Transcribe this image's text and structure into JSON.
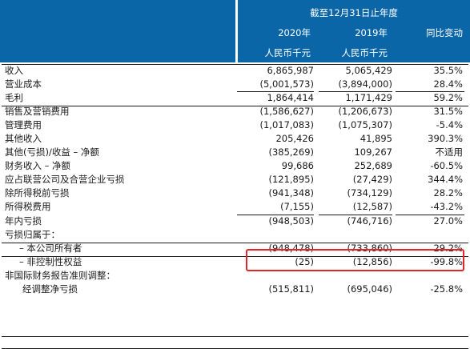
{
  "header": {
    "period_label": "截至12月31日止年度",
    "col_2020": "2020年",
    "col_2019": "2019年",
    "col_change": "同比变动",
    "unit_2020": "人民币千元",
    "unit_2019": "人民币千元",
    "header_color": "#0b66a8"
  },
  "rows": [
    {
      "label": "收入",
      "v2020": "6,865,987",
      "v2019": "5,065,429",
      "change": "35.5%"
    },
    {
      "label": "营业成本",
      "v2020": "(5,001,573)",
      "v2019": "(3,894,000)",
      "change": "28.4%"
    },
    {
      "label": "毛利",
      "v2020": "1,864,414",
      "v2019": "1,171,429",
      "change": "59.2%"
    },
    {
      "label": "销售及营销费用",
      "v2020": "(1,586,627)",
      "v2019": "(1,206,673)",
      "change": "31.5%"
    },
    {
      "label": "管理费用",
      "v2020": "(1,017,083)",
      "v2019": "(1,075,307)",
      "change": "-5.4%"
    },
    {
      "label": "其他收入",
      "v2020": "205,426",
      "v2019": "41,895",
      "change": "390.3%"
    },
    {
      "label": "其他(亏损)/收益 – 净额",
      "v2020": "(385,269)",
      "v2019": "109,267",
      "change": "不适用"
    },
    {
      "label": "财务收入 – 净额",
      "v2020": "99,686",
      "v2019": "252,689",
      "change": "-60.5%"
    },
    {
      "label": "应占联营公司及合营企业亏损",
      "v2020": "(121,895)",
      "v2019": "(27,429)",
      "change": "344.4%"
    },
    {
      "label": "除所得税前亏损",
      "v2020": "(941,348)",
      "v2019": "(734,129)",
      "change": "28.2%"
    },
    {
      "label": "所得税费用",
      "v2020": "(7,155)",
      "v2019": "(12,587)",
      "change": "-43.2%"
    },
    {
      "label": "年内亏损",
      "v2020": "(948,503)",
      "v2019": "(746,716)",
      "change": "27.0%"
    },
    {
      "label": "亏损归属于：",
      "v2020": "",
      "v2019": "",
      "change": ""
    },
    {
      "label": "– 本公司所有者",
      "v2020": "(948,478)",
      "v2019": "(733,860)",
      "change": "29.2%"
    },
    {
      "label": "– 非控制性权益",
      "v2020": "(25)",
      "v2019": "(12,856)",
      "change": "-99.8%"
    },
    {
      "label": "非国际财务报告准则调整：",
      "v2020": "",
      "v2019": "",
      "change": ""
    },
    {
      "label": "经调整净亏损",
      "v2020": "(515,811)",
      "v2019": "(695,046)",
      "change": "-25.8%"
    }
  ],
  "highlight_color": "#e3262b"
}
